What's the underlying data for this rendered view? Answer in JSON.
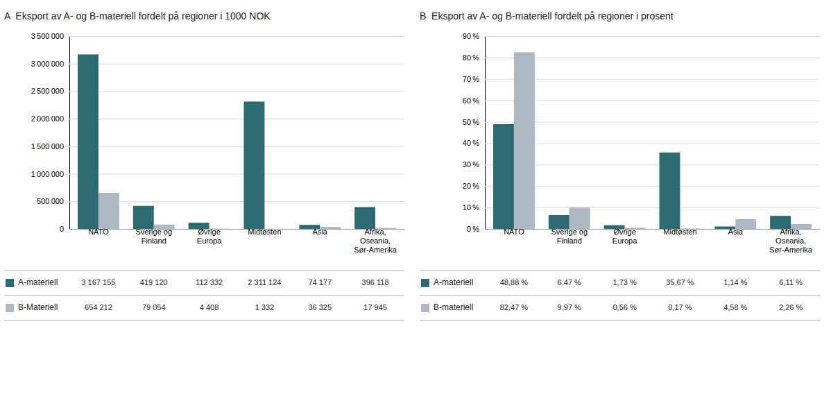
{
  "chart_data": [
    {
      "type": "bar",
      "title": "A  Eksport av A- og B-materiell fordelt på regioner i 1000 NOK",
      "categories": [
        "NATO",
        "Sverige og\nFinland",
        "Øvrige\nEuropa",
        "Midtøsten",
        "Asia",
        "Afrika,\nOseania,\nSør-Amerika"
      ],
      "series": [
        {
          "name": "A-materiell",
          "color": "#2d6b73",
          "values": [
            3167155,
            419120,
            112332,
            2311124,
            74177,
            396118
          ],
          "value_labels": [
            "3 167 155",
            "419 120",
            "112 332",
            "2 311 124",
            "74 177",
            "396 118"
          ]
        },
        {
          "name": "B-Materiell",
          "color": "#adb9c2",
          "values": [
            654212,
            79054,
            4408,
            1332,
            36325,
            17945
          ],
          "value_labels": [
            "654 212",
            "79 054",
            "4 408",
            "1 332",
            "36 325",
            "17 945"
          ]
        }
      ],
      "ylim": [
        0,
        3500000
      ],
      "yticks": [
        0,
        {
          "value": 500000,
          "label": "500 000"
        },
        {
          "value": 1000000,
          "label": "1 000 000"
        },
        {
          "value": 1500000,
          "label": "1 500 000"
        },
        {
          "value": 2000000,
          "label": "2 000 000"
        },
        {
          "value": 2500000,
          "label": "2 500 000"
        },
        {
          "value": 3000000,
          "label": "3 000 000"
        },
        {
          "value": 3500000,
          "label": "3 500 000"
        }
      ],
      "grid": true
    },
    {
      "type": "bar",
      "title": "B  Eksport av A- og B-materiell fordelt på regioner i prosent",
      "categories": [
        "NATO",
        "Sverige og\nFinland",
        "Øvrige\nEuropa",
        "Midtøsten",
        "Asia",
        "Afrika,\nOseania,\nSør-Amerika"
      ],
      "series": [
        {
          "name": "A-materiell",
          "color": "#2d6b73",
          "values": [
            48.88,
            6.47,
            1.73,
            35.67,
            1.14,
            6.11
          ],
          "value_labels": [
            "48,88 %",
            "6,47 %",
            "1,73 %",
            "35,67 %",
            "1,14 %",
            "6,11 %"
          ]
        },
        {
          "name": "B-materiell",
          "color": "#adb9c2",
          "values": [
            82.47,
            9.97,
            0.56,
            0.17,
            4.58,
            2.26
          ],
          "value_labels": [
            "82,47 %",
            "9,97 %",
            "0,56 %",
            "0,17 %",
            "4,58 %",
            "2,26 %"
          ]
        }
      ],
      "ylim": [
        0,
        90
      ],
      "yticks": [
        {
          "value": 0,
          "label": "0 %"
        },
        {
          "value": 10,
          "label": "10 %"
        },
        {
          "value": 20,
          "label": "20 %"
        },
        {
          "value": 30,
          "label": "30 %"
        },
        {
          "value": 40,
          "label": "40 %"
        },
        {
          "value": 50,
          "label": "50 %"
        },
        {
          "value": 60,
          "label": "60 %"
        },
        {
          "value": 70,
          "label": "70 %"
        },
        {
          "value": 80,
          "label": "80 %"
        },
        {
          "value": 90,
          "label": "90 %"
        }
      ],
      "grid": true
    }
  ]
}
